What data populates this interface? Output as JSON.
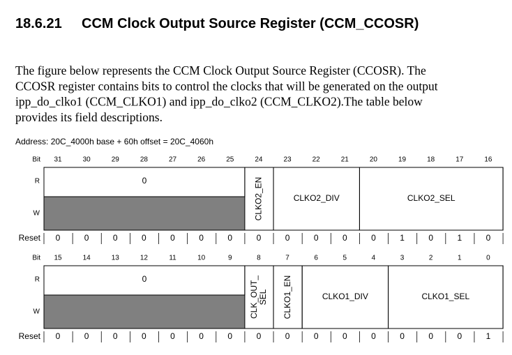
{
  "heading": {
    "number": "18.6.21",
    "title": "CCM Clock Output Source Register (CCM_CCOSR)"
  },
  "paragraph": [
    "The figure below represents the CCM Clock Output Source Register (CCOSR). The",
    "CCOSR register contains bits to control the clocks that will be generated on the output",
    "ipp_do_clko1 (CCM_CLKO1) and ipp_do_clko2 (CCM_CLKO2).The table below",
    "provides its field descriptions."
  ],
  "address": "Address: 20C_4000h base + 60h offset = 20C_4060h",
  "register": [
    {
      "bit_label": "Bit",
      "bits": [
        31,
        30,
        29,
        28,
        27,
        26,
        25,
        24,
        23,
        22,
        21,
        20,
        19,
        18,
        17,
        16
      ],
      "r_label": "R",
      "w_label": "W",
      "fields": [
        {
          "lines": [
            "0"
          ],
          "reserved": true
        },
        {
          "lines": [
            "CLKO2_EN"
          ],
          "vertical": true
        },
        {
          "lines": [
            "CLKO2_DIV"
          ]
        },
        {
          "lines": [
            "CLKO2_SEL"
          ]
        }
      ],
      "reset_label": "Reset",
      "reset": [
        0,
        0,
        0,
        0,
        0,
        0,
        0,
        0,
        0,
        0,
        0,
        0,
        1,
        0,
        1,
        0
      ]
    },
    {
      "bit_label": "Bit",
      "bits": [
        15,
        14,
        13,
        12,
        11,
        10,
        9,
        8,
        7,
        6,
        5,
        4,
        3,
        2,
        1,
        0
      ],
      "r_label": "R",
      "w_label": "W",
      "fields": [
        {
          "lines": [
            "0"
          ],
          "reserved": true
        },
        {
          "lines": [
            "CLK_OUT_",
            "SEL"
          ],
          "vertical": true
        },
        {
          "lines": [
            "CLKO1_EN"
          ],
          "vertical": true
        },
        {
          "lines": [
            "CLKO1_DIV"
          ]
        },
        {
          "lines": [
            "CLKO1_SEL"
          ]
        }
      ],
      "reset_label": "Reset",
      "reset": [
        0,
        0,
        0,
        0,
        0,
        0,
        0,
        0,
        0,
        0,
        0,
        0,
        0,
        0,
        0,
        1
      ]
    }
  ]
}
